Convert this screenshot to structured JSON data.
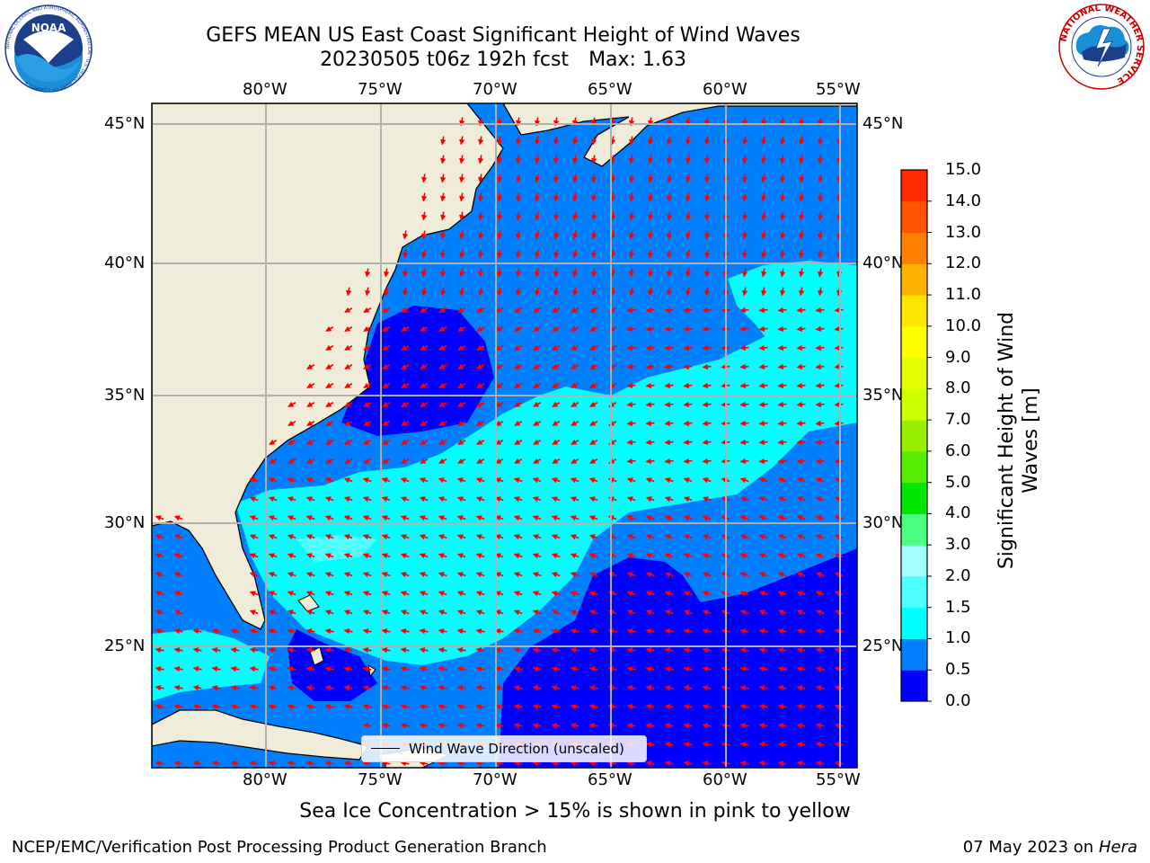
{
  "header": {
    "title_line1": "GEFS MEAN US East Coast Significant Height of Wind Waves",
    "title_line2_date": "20230505 t06z 192h fcst",
    "title_line2_max": "Max: 1.63"
  },
  "logos": {
    "left": {
      "text": "NOAA",
      "ring_text": "NATIONAL OCEANIC AND ATMOSPHERIC ADMINISTRATION · U.S. DEPARTMENT OF COMMERCE"
    },
    "right": {
      "ring_text": "NATIONAL WEATHER SERVICE"
    }
  },
  "map": {
    "projection": "equirectangular",
    "lon_range": [
      -85,
      -54.3
    ],
    "lat_range": [
      20.4,
      45.9
    ],
    "lon_ticks": [
      "80°W",
      "75°W",
      "70°W",
      "65°W",
      "60°W",
      "55°W"
    ],
    "lat_ticks": [
      "45°N",
      "40°N",
      "35°N",
      "30°N",
      "25°N"
    ],
    "land_color": "#efedda",
    "arrow_color": "#ff0000",
    "grid_color": "#b0b0b0"
  },
  "legend": {
    "label": "Wind Wave Direction (unscaled)"
  },
  "colorbar": {
    "label": "Significant Height of Wind Waves [m]",
    "label_line1": "Significant Height of Wind",
    "label_line2": "Waves [m]",
    "ticks": [
      "0.0",
      "0.5",
      "1.0",
      "1.5",
      "2.0",
      "3.0",
      "4.0",
      "5.0",
      "6.0",
      "7.0",
      "8.0",
      "9.0",
      "10.0",
      "11.0",
      "12.0",
      "13.0",
      "14.0",
      "15.0"
    ],
    "colors": [
      "#0000ff",
      "#0080ff",
      "#00ffff",
      "#4dffff",
      "#a6ffff",
      "#4dff80",
      "#00e600",
      "#55ee00",
      "#99ee00",
      "#ccff00",
      "#e6ff00",
      "#ffff00",
      "#ffe600",
      "#ffb300",
      "#ff8000",
      "#ff5500",
      "#ff2a00",
      "#ff0000"
    ]
  },
  "footer": {
    "note": "Sea Ice Concentration > 15% is shown in pink to yellow",
    "left": "NCEP/EMC/Verification Post Processing Product Generation Branch",
    "date": "07 May 2023 on",
    "machine": "Hera"
  }
}
